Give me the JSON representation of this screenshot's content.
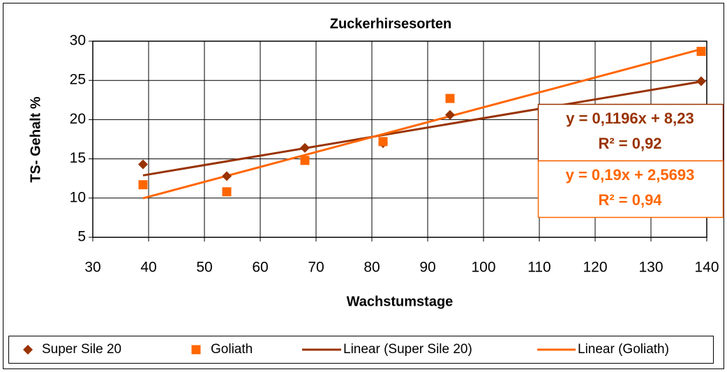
{
  "chart_data": {
    "type": "scatter",
    "title": "Zuckerhirsesorten",
    "x_label": "Wachstumstage",
    "y_label": "TS- Gehalt %",
    "xlim": [
      30,
      140
    ],
    "xticks": [
      30,
      40,
      50,
      60,
      70,
      80,
      90,
      100,
      110,
      120,
      130,
      140
    ],
    "ylim": [
      5,
      30
    ],
    "yticks": [
      5,
      10,
      15,
      20,
      25,
      30
    ],
    "grid": true,
    "legend": "bottom",
    "series": [
      {
        "name": "Super Sile 20",
        "color": "#993300",
        "marker": "diamond",
        "x": [
          39,
          54,
          68,
          82,
          94,
          139
        ],
        "values": [
          14.3,
          12.8,
          16.4,
          17.0,
          20.6,
          24.9
        ]
      },
      {
        "name": "Goliath",
        "color": "#ff6600",
        "marker": "square",
        "x": [
          39,
          54,
          68,
          82,
          94,
          139
        ],
        "values": [
          11.7,
          10.8,
          14.8,
          17.2,
          22.7,
          28.7
        ]
      },
      {
        "name": "Linear (Super Sile 20)",
        "color": "#993300",
        "marker": "line",
        "x": [
          39,
          139
        ],
        "values": [
          12.89,
          24.85
        ]
      },
      {
        "name": "Linear (Goliath)",
        "color": "#ff6600",
        "marker": "line",
        "x": [
          39,
          139
        ],
        "values": [
          9.98,
          28.98
        ]
      }
    ],
    "annotations": [
      {
        "equation": "y = 0,1196x + 8,23",
        "r2": "R² = 0,92",
        "color": "#993300"
      },
      {
        "equation": "y = 0,19x + 2,5693",
        "r2": "R² = 0,94",
        "color": "#ff6600"
      }
    ]
  }
}
